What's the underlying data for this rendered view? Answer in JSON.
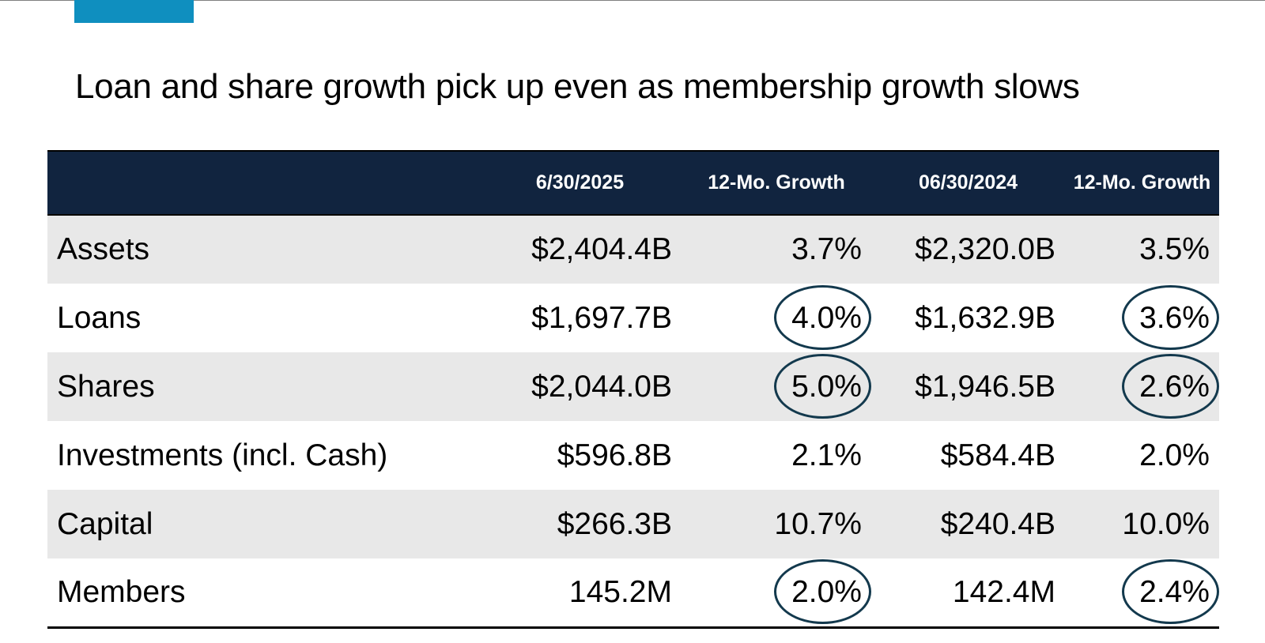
{
  "slide": {
    "title": "Loan and share growth pick up even as membership growth slows"
  },
  "colors": {
    "accent": "#0f8fbf",
    "header_bg": "#11243f",
    "row_shade": "#e8e8e8",
    "circle": "#13394d"
  },
  "table": {
    "headers": [
      "",
      "6/30/2025",
      "12-Mo. Growth",
      "06/30/2024",
      "12-Mo. Growth"
    ],
    "rows": [
      {
        "label": "Assets",
        "cells": [
          {
            "text": "$2,404.4B",
            "circled": false
          },
          {
            "text": "3.7%",
            "circled": false
          },
          {
            "text": "$2,320.0B",
            "circled": false
          },
          {
            "text": "3.5%",
            "circled": false
          }
        ]
      },
      {
        "label": "Loans",
        "cells": [
          {
            "text": "$1,697.7B",
            "circled": false
          },
          {
            "text": "4.0%",
            "circled": true
          },
          {
            "text": "$1,632.9B",
            "circled": false
          },
          {
            "text": "3.6%",
            "circled": true
          }
        ]
      },
      {
        "label": "Shares",
        "cells": [
          {
            "text": "$2,044.0B",
            "circled": false
          },
          {
            "text": "5.0%",
            "circled": true
          },
          {
            "text": "$1,946.5B",
            "circled": false
          },
          {
            "text": "2.6%",
            "circled": true
          }
        ]
      },
      {
        "label": "Investments (incl. Cash)",
        "cells": [
          {
            "text": "$596.8B",
            "circled": false
          },
          {
            "text": "2.1%",
            "circled": false
          },
          {
            "text": "$584.4B",
            "circled": false
          },
          {
            "text": "2.0%",
            "circled": false
          }
        ]
      },
      {
        "label": "Capital",
        "cells": [
          {
            "text": "$266.3B",
            "circled": false
          },
          {
            "text": "10.7%",
            "circled": false
          },
          {
            "text": "$240.4B",
            "circled": false
          },
          {
            "text": "10.0%",
            "circled": false
          }
        ]
      },
      {
        "label": "Members",
        "cells": [
          {
            "text": "145.2M",
            "circled": false
          },
          {
            "text": "2.0%",
            "circled": true
          },
          {
            "text": "142.4M",
            "circled": false
          },
          {
            "text": "2.4%",
            "circled": true
          }
        ]
      }
    ]
  }
}
